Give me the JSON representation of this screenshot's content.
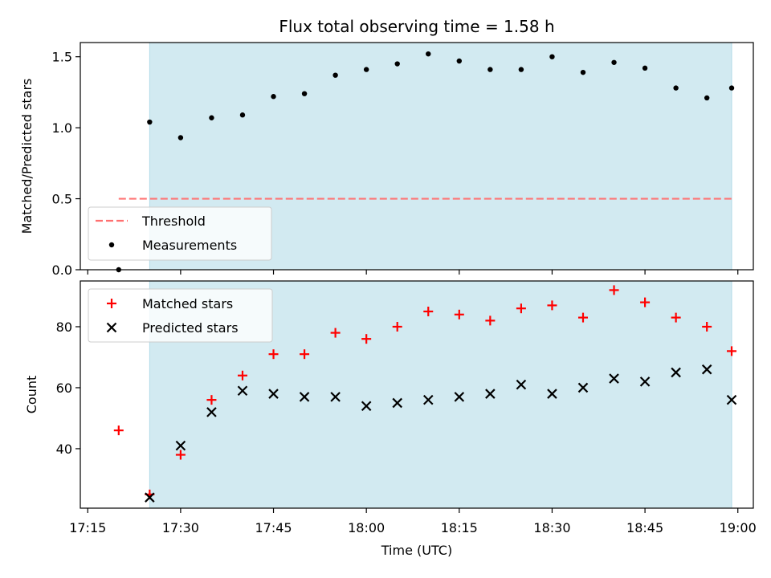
{
  "chart_data": [
    {
      "type": "scatter",
      "title": "Flux total observing time = 1.58 h",
      "ylabel": "Matched/Predicted stars",
      "ylim": [
        0,
        1.6
      ],
      "yticks": [
        "0.0",
        "0.5",
        "1.0",
        "1.5"
      ],
      "grid": false,
      "legend_position": "lower-left",
      "shaded_interval": [
        "17:25",
        "18:59"
      ],
      "series": [
        {
          "name": "Threshold",
          "style": "dashed-line",
          "color": "#ff7070",
          "x": [
            "17:20",
            "18:59"
          ],
          "y": [
            0.5,
            0.5
          ]
        },
        {
          "name": "Measurements",
          "style": "dot",
          "color": "#000000",
          "x": [
            "17:20",
            "17:25",
            "17:30",
            "17:35",
            "17:40",
            "17:45",
            "17:50",
            "17:55",
            "18:00",
            "18:05",
            "18:10",
            "18:15",
            "18:20",
            "18:25",
            "18:30",
            "18:35",
            "18:40",
            "18:45",
            "18:50",
            "18:55",
            "18:59"
          ],
          "y": [
            0.0,
            1.04,
            0.93,
            1.07,
            1.09,
            1.22,
            1.24,
            1.37,
            1.41,
            1.45,
            1.52,
            1.47,
            1.41,
            1.41,
            1.5,
            1.39,
            1.46,
            1.42,
            1.28,
            1.21,
            1.28
          ]
        }
      ]
    },
    {
      "type": "scatter",
      "xlabel": "Time (UTC)",
      "ylabel": "Count",
      "ylim": [
        20.5,
        95
      ],
      "yticks": [
        "40",
        "60",
        "80"
      ],
      "xticks": [
        "17:15",
        "17:30",
        "17:45",
        "18:00",
        "18:15",
        "18:30",
        "18:45",
        "19:00"
      ],
      "grid": false,
      "legend_position": "upper-left",
      "shaded_interval": [
        "17:25",
        "18:59"
      ],
      "series": [
        {
          "name": "Matched stars",
          "marker": "plus",
          "color": "#ff0000",
          "x": [
            "17:20",
            "17:25",
            "17:30",
            "17:35",
            "17:40",
            "17:45",
            "17:50",
            "17:55",
            "18:00",
            "18:05",
            "18:10",
            "18:15",
            "18:20",
            "18:25",
            "18:30",
            "18:35",
            "18:40",
            "18:45",
            "18:50",
            "18:55",
            "18:59"
          ],
          "y": [
            46,
            25,
            38,
            56,
            64,
            71,
            71,
            78,
            76,
            80,
            85,
            84,
            82,
            86,
            87,
            83,
            92,
            88,
            83,
            80,
            72
          ]
        },
        {
          "name": "Predicted stars",
          "marker": "x",
          "color": "#000000",
          "x": [
            "17:25",
            "17:30",
            "17:35",
            "17:40",
            "17:45",
            "17:50",
            "17:55",
            "18:00",
            "18:05",
            "18:10",
            "18:15",
            "18:20",
            "18:25",
            "18:30",
            "18:35",
            "18:40",
            "18:45",
            "18:50",
            "18:55",
            "18:59"
          ],
          "y": [
            24,
            41,
            52,
            59,
            58,
            57,
            57,
            54,
            55,
            56,
            57,
            58,
            61,
            58,
            60,
            63,
            62,
            65,
            66,
            56
          ]
        }
      ]
    }
  ],
  "colors": {
    "shade": "#add8e6",
    "threshold": "#ff7070",
    "matched": "#ff0000",
    "predicted": "#000000",
    "measurement": "#000000"
  }
}
